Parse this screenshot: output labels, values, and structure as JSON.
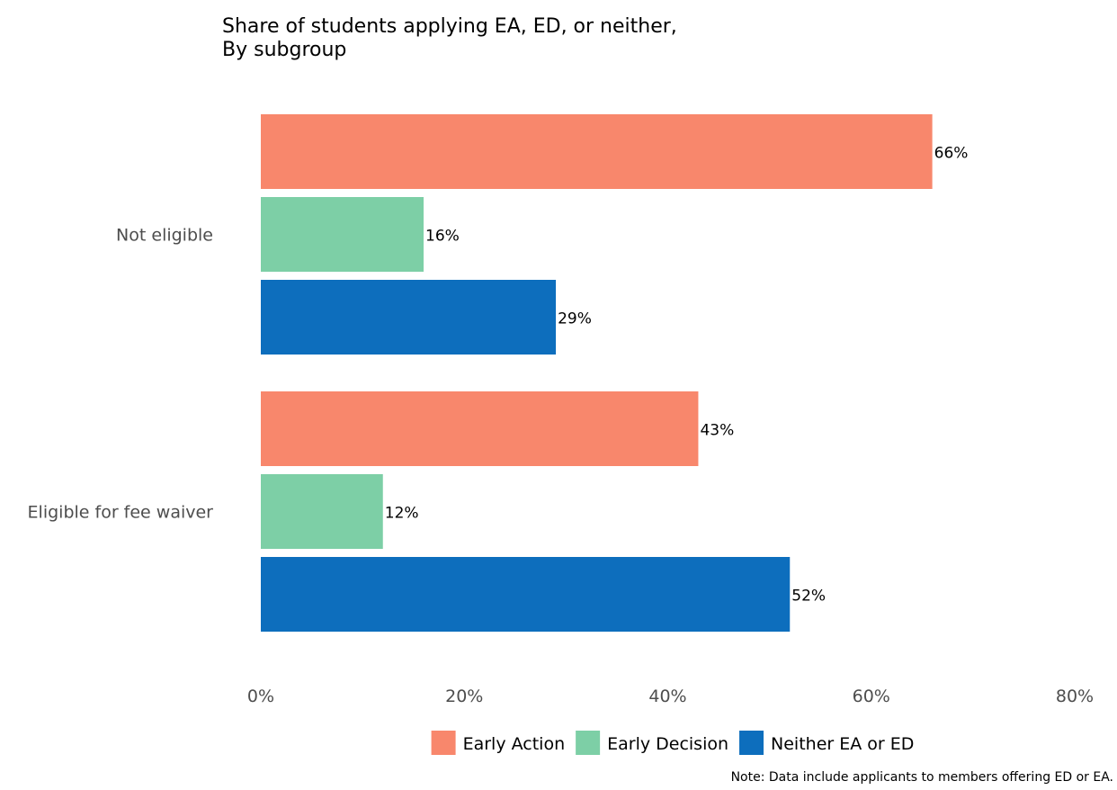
{
  "chart_data": {
    "type": "bar",
    "orientation": "horizontal",
    "title": "Share of students applying EA, ED, or neither,",
    "subtitle": "By subgroup",
    "categories": [
      "Not eligible",
      "Eligible for fee waiver"
    ],
    "series": [
      {
        "name": "Early Action",
        "color": "#f8876c",
        "values": [
          66,
          43
        ],
        "labels": [
          "66%",
          "43%"
        ]
      },
      {
        "name": "Early Decision",
        "color": "#7dcfa6",
        "values": [
          16,
          12
        ],
        "labels": [
          "16%",
          "12%"
        ]
      },
      {
        "name": "Neither EA or ED",
        "color": "#0d6ebd",
        "values": [
          29,
          52
        ],
        "labels": [
          "29%",
          "52%"
        ]
      }
    ],
    "xlim": [
      0,
      80
    ],
    "x_ticks": [
      0,
      20,
      40,
      60,
      80
    ],
    "x_tick_labels": [
      "0%",
      "20%",
      "40%",
      "60%",
      "80%"
    ],
    "xlabel": "",
    "ylabel": "",
    "grid": false,
    "legend_position": "bottom",
    "note": "Note: Data include applicants to members offering ED or EA."
  }
}
